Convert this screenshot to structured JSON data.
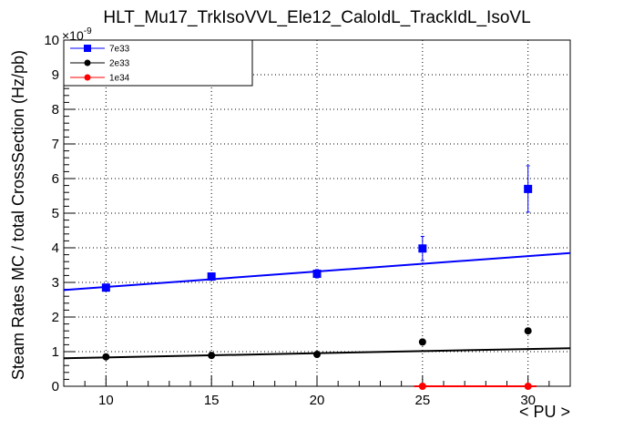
{
  "chart_data": {
    "type": "scatter",
    "title": "HLT_Mu17_TrkIsoVVL_Ele12_CaloIdL_TrackIdL_IsoVL",
    "xlabel": "< PU >",
    "ylabel": "Steam Rates MC / total CrossSection (Hz/pb)",
    "y_multiplier_base": "×10",
    "y_multiplier_exponent": "-9",
    "xlim": [
      8,
      32
    ],
    "ylim": [
      0,
      10
    ],
    "x_ticks": [
      10,
      15,
      20,
      25,
      30
    ],
    "y_ticks": [
      0,
      1,
      2,
      3,
      4,
      5,
      6,
      7,
      8,
      9,
      10
    ],
    "x_tick_labels": [
      "10",
      "15",
      "20",
      "25",
      "30"
    ],
    "y_tick_labels": [
      "0",
      "1",
      "2",
      "3",
      "4",
      "5",
      "6",
      "7",
      "8",
      "9",
      "10"
    ],
    "grid": true,
    "legend_position": "top-left",
    "series": [
      {
        "name": "7e33",
        "color": "#0000ff",
        "marker": "square",
        "x": [
          10,
          15,
          20,
          25,
          30
        ],
        "y": [
          2.85,
          3.17,
          3.25,
          3.98,
          5.7
        ],
        "yerr": [
          0.08,
          0.1,
          0.12,
          0.35,
          0.67
        ],
        "fit": {
          "x": [
            8,
            32
          ],
          "y": [
            2.78,
            3.85
          ]
        }
      },
      {
        "name": "2e33",
        "color": "#000000",
        "marker": "circle",
        "x": [
          10,
          15,
          20,
          25,
          30
        ],
        "y": [
          0.85,
          0.89,
          0.92,
          1.28,
          1.6
        ],
        "yerr": [
          0.03,
          0.03,
          0.04,
          0.05,
          0.06
        ],
        "fit": {
          "x": [
            8,
            32
          ],
          "y": [
            0.81,
            1.1
          ]
        }
      },
      {
        "name": "1e34",
        "color": "#ff0000",
        "marker": "circle",
        "x": [
          25,
          30
        ],
        "y": [
          0,
          0
        ],
        "yerr": [
          0,
          0
        ],
        "fit": {
          "x": [
            24.6,
            30.4
          ],
          "y": [
            0,
            0
          ]
        }
      }
    ]
  }
}
